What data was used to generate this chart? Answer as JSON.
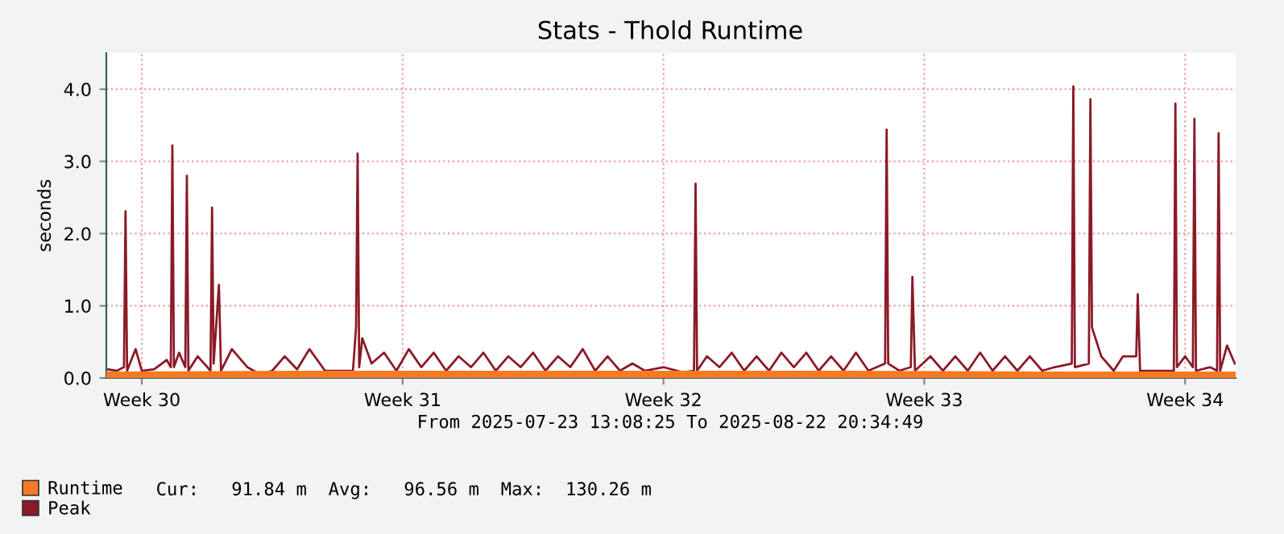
{
  "chart_data": {
    "type": "line",
    "title": "Stats - Thold Runtime",
    "ylabel": "seconds",
    "xlim": [
      "2025-07-23T13:08",
      "2025-08-22T20:34"
    ],
    "xticks": [
      {
        "value": "2025-07-24T12:00",
        "label": "Week 30"
      },
      {
        "value": "2025-07-31T12:00",
        "label": "Week 31"
      },
      {
        "value": "2025-08-07T12:00",
        "label": "Week 32"
      },
      {
        "value": "2025-08-14T12:00",
        "label": "Week 33"
      },
      {
        "value": "2025-08-21T12:00",
        "label": "Week 34"
      }
    ],
    "ylim": [
      0,
      4.5
    ],
    "yticks": [
      {
        "value": 0,
        "label": "0.0"
      },
      {
        "value": 1,
        "label": "1.0"
      },
      {
        "value": 2,
        "label": "2.0"
      },
      {
        "value": 3,
        "label": "3.0"
      },
      {
        "value": 4,
        "label": "4.0"
      }
    ],
    "grid": true,
    "legend": "bottom left",
    "marker": "none",
    "line_style": "solid",
    "annotations": [
      "From 2025-07-23 13:08:25 To 2025-08-22 20:34:49",
      "Cur:   91.84 m  Avg:   96.56 m  Max:  130.26 m"
    ],
    "series": [
      {
        "name": "Runtime",
        "type": "area",
        "color": "#f57a26",
        "x": [
          "2025-07-23T13:08",
          "2025-07-28T12:00",
          "2025-08-02T12:00",
          "2025-08-07T12:00",
          "2025-08-12T12:00",
          "2025-08-17T12:00",
          "2025-08-22T20:34"
        ],
        "values": [
          0.09,
          0.1,
          0.1,
          0.1,
          0.1,
          0.09,
          0.09
        ]
      },
      {
        "name": "Peak",
        "color": "#8b1a26",
        "x": [
          "2025-07-23T14:00",
          "2025-07-23T20:00",
          "2025-07-24T00:30",
          "2025-07-24T01:30",
          "2025-07-24T02:30",
          "2025-07-24T08:00",
          "2025-07-24T12:00",
          "2025-07-24T20:00",
          "2025-07-25T04:00",
          "2025-07-25T06:40",
          "2025-07-25T07:40",
          "2025-07-25T08:40",
          "2025-07-25T12:00",
          "2025-07-25T16:00",
          "2025-07-25T17:00",
          "2025-07-25T18:00",
          "2025-07-26T00:00",
          "2025-07-26T08:15",
          "2025-07-26T09:15",
          "2025-07-26T10:15",
          "2025-07-26T13:40",
          "2025-07-26T15:00",
          "2025-07-26T22:00",
          "2025-07-27T08:00",
          "2025-07-27T16:00",
          "2025-07-28T00:00",
          "2025-07-28T08:00",
          "2025-07-28T16:00",
          "2025-07-29T00:00",
          "2025-07-29T10:00",
          "2025-07-29T20:00",
          "2025-07-30T04:00",
          "2025-07-30T06:00",
          "2025-07-30T07:00",
          "2025-07-30T08:00",
          "2025-07-30T10:00",
          "2025-07-30T16:00",
          "2025-07-31T00:00",
          "2025-07-31T08:00",
          "2025-07-31T16:00",
          "2025-08-01T00:00",
          "2025-08-01T08:00",
          "2025-08-01T16:00",
          "2025-08-02T00:00",
          "2025-08-02T08:00",
          "2025-08-02T16:00",
          "2025-08-03T00:00",
          "2025-08-03T08:00",
          "2025-08-03T16:00",
          "2025-08-04T00:00",
          "2025-08-04T08:00",
          "2025-08-04T16:00",
          "2025-08-05T00:00",
          "2025-08-05T08:00",
          "2025-08-05T16:00",
          "2025-08-06T00:00",
          "2025-08-06T08:00",
          "2025-08-06T16:00",
          "2025-08-07T00:00",
          "2025-08-07T12:00",
          "2025-08-08T00:00",
          "2025-08-08T07:40",
          "2025-08-08T08:40",
          "2025-08-08T09:40",
          "2025-08-08T16:00",
          "2025-08-09T00:00",
          "2025-08-09T08:00",
          "2025-08-09T16:00",
          "2025-08-10T00:00",
          "2025-08-10T08:00",
          "2025-08-10T16:00",
          "2025-08-11T00:00",
          "2025-08-11T08:00",
          "2025-08-11T16:00",
          "2025-08-12T00:00",
          "2025-08-12T08:00",
          "2025-08-12T16:00",
          "2025-08-13T00:00",
          "2025-08-13T10:45",
          "2025-08-13T11:45",
          "2025-08-13T12:45",
          "2025-08-13T20:00",
          "2025-08-14T03:20",
          "2025-08-14T04:20",
          "2025-08-14T06:00",
          "2025-08-14T16:00",
          "2025-08-15T00:00",
          "2025-08-15T08:00",
          "2025-08-15T16:00",
          "2025-08-16T00:00",
          "2025-08-16T08:00",
          "2025-08-16T16:00",
          "2025-08-17T00:00",
          "2025-08-17T08:00",
          "2025-08-17T16:00",
          "2025-08-18T00:00",
          "2025-08-18T11:00",
          "2025-08-18T12:00",
          "2025-08-18T13:00",
          "2025-08-18T22:00",
          "2025-08-18T23:00",
          "2025-08-19T00:00",
          "2025-08-19T06:00",
          "2025-08-19T14:00",
          "2025-08-19T20:00",
          "2025-08-20T04:30",
          "2025-08-20T05:30",
          "2025-08-20T07:00",
          "2025-08-20T16:00",
          "2025-08-21T04:45",
          "2025-08-21T05:45",
          "2025-08-21T06:45",
          "2025-08-21T12:00",
          "2025-08-21T17:00",
          "2025-08-21T18:00",
          "2025-08-21T19:00",
          "2025-08-22T04:00",
          "2025-08-22T08:35",
          "2025-08-22T09:35",
          "2025-08-22T10:35",
          "2025-08-22T15:00",
          "2025-08-22T20:00"
        ],
        "values": [
          0.12,
          0.1,
          0.15,
          2.31,
          0.1,
          0.4,
          0.1,
          0.12,
          0.25,
          0.15,
          3.22,
          0.15,
          0.35,
          0.15,
          2.8,
          0.1,
          0.3,
          0.1,
          2.36,
          0.2,
          1.29,
          0.1,
          0.4,
          0.15,
          0.05,
          0.1,
          0.3,
          0.12,
          0.4,
          0.1,
          0.1,
          0.1,
          0.7,
          3.11,
          0.15,
          0.55,
          0.2,
          0.35,
          0.1,
          0.4,
          0.15,
          0.35,
          0.1,
          0.3,
          0.15,
          0.35,
          0.1,
          0.3,
          0.15,
          0.35,
          0.1,
          0.3,
          0.15,
          0.4,
          0.1,
          0.3,
          0.1,
          0.2,
          0.1,
          0.15,
          0.08,
          0.1,
          2.69,
          0.1,
          0.3,
          0.15,
          0.35,
          0.1,
          0.3,
          0.1,
          0.35,
          0.15,
          0.35,
          0.1,
          0.3,
          0.1,
          0.35,
          0.1,
          0.2,
          3.44,
          0.2,
          0.1,
          0.15,
          1.4,
          0.1,
          0.3,
          0.1,
          0.3,
          0.1,
          0.35,
          0.1,
          0.3,
          0.1,
          0.3,
          0.1,
          0.15,
          0.2,
          4.04,
          0.15,
          0.2,
          3.86,
          0.7,
          0.3,
          0.1,
          0.3,
          0.3,
          1.16,
          0.1,
          0.1,
          0.1,
          3.8,
          0.15,
          0.3,
          0.15,
          3.59,
          0.1,
          0.15,
          0.1,
          3.39,
          0.1,
          0.45,
          0.2
        ]
      }
    ]
  }
}
